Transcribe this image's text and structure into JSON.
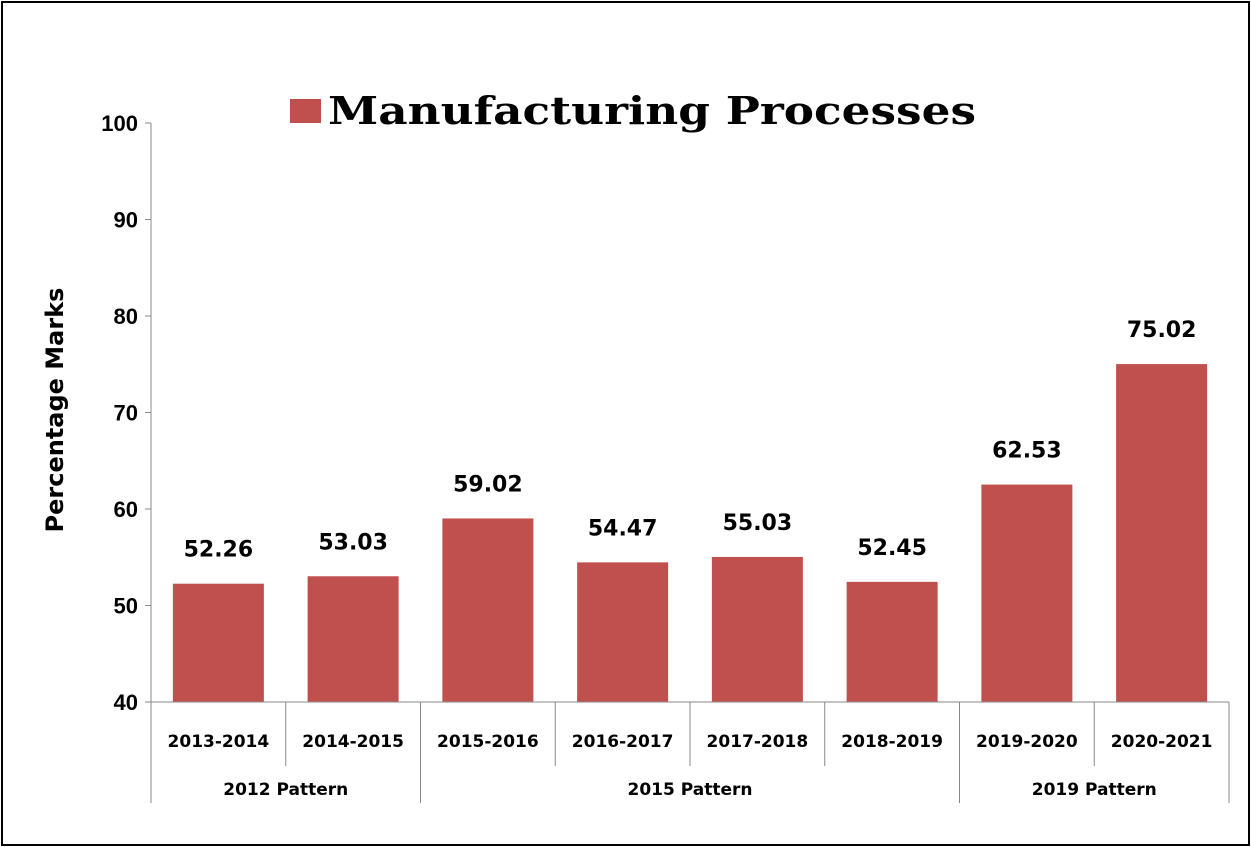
{
  "chart_data": {
    "type": "bar",
    "categories": [
      "2013-2014",
      "2014-2015",
      "2015-2016",
      "2016-2017",
      "2017-2018",
      "2018-2019",
      "2019-2020",
      "2020-2021"
    ],
    "groups": [
      {
        "label": "2012 Pattern",
        "span": 2
      },
      {
        "label": "2015 Pattern",
        "span": 4
      },
      {
        "label": "2019 Pattern",
        "span": 2
      }
    ],
    "series": [
      {
        "name": "Manufacturing Processes",
        "color": "#C0504D",
        "values": [
          52.26,
          53.03,
          59.02,
          54.47,
          55.03,
          52.45,
          62.53,
          75.02
        ]
      }
    ],
    "value_labels": [
      "52.26",
      "53.03",
      "59.02",
      "54.47",
      "55.03",
      "52.45",
      "62.53",
      "75.02"
    ],
    "ylabel": "Percentage Marks",
    "xlabel": "",
    "ylim": [
      40,
      100
    ],
    "yticks": [
      "40",
      "50",
      "60",
      "70",
      "80",
      "90",
      "100"
    ],
    "grid": false,
    "legend_position": "top-center"
  }
}
